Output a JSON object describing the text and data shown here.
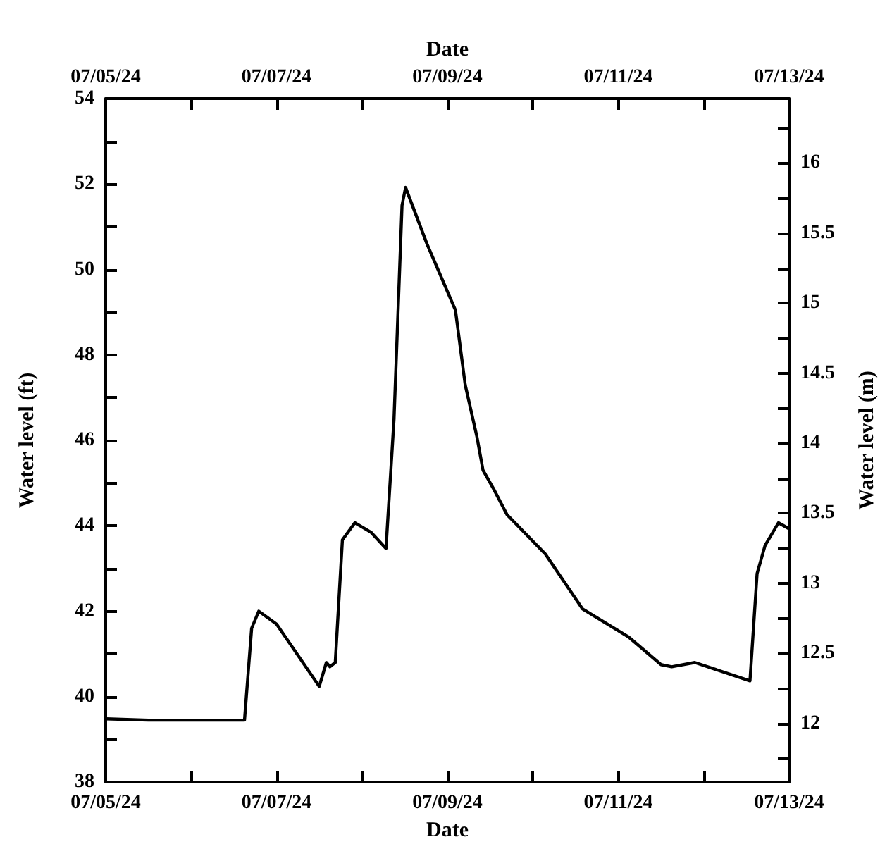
{
  "chart_data": {
    "type": "line",
    "xlabel": "Date",
    "x2label": "Date",
    "ylabel": "Water level (ft)",
    "y2label": "Water level (m)",
    "x": [
      "--07-05T00:00",
      "--07-05T12:00",
      "--07-06T00:00",
      "--07-06T15:00",
      "--07-06T17:00",
      "--07-06T19:00",
      "--07-07T00:00",
      "--07-07T12:00",
      "--07-07T14:00",
      "--07-07T15:00",
      "--07-07T16:30",
      "--07-07T18:30",
      "--07-07T22:00",
      "--07-08T02:30",
      "--07-08T06:45",
      "--07-08T09:00",
      "--07-08T11:15",
      "--07-08T12:15",
      "--07-08T18:15",
      "--07-09T02:15",
      "--07-09T05:00",
      "--07-09T08:15",
      "--07-09T10:00",
      "--07-09T13:00",
      "--07-09T16:45",
      "--07-10T03:30",
      "--07-10T14:00",
      "--07-11T03:00",
      "--07-11T12:00",
      "--07-11T15:00",
      "--07-11T21:30",
      "--07-12T13:00",
      "--07-12T15:00",
      "--07-12T17:15",
      "--07-12T21:00",
      "--07-13T00:00"
    ],
    "series": [
      {
        "color": "#000000",
        "values": [
          39.48,
          39.45,
          39.45,
          39.45,
          41.6,
          42.0,
          41.7,
          40.24,
          40.8,
          40.7,
          40.8,
          43.67,
          44.07,
          43.85,
          43.47,
          46.5,
          51.5,
          51.92,
          50.6,
          49.05,
          47.3,
          46.1,
          45.3,
          44.86,
          44.26,
          43.34,
          42.05,
          41.39,
          40.75,
          40.7,
          40.8,
          40.37,
          42.88,
          43.54,
          44.07,
          43.93
        ]
      }
    ],
    "xlim": [
      "--07-05",
      "--07-13"
    ],
    "xticks": [
      {
        "value": "--07-05",
        "label": "07/05/24"
      },
      {
        "value": "--07-06",
        "label": null
      },
      {
        "value": "--07-07",
        "label": "07/07/24"
      },
      {
        "value": "--07-08",
        "label": null
      },
      {
        "value": "--07-09",
        "label": "07/09/24"
      },
      {
        "value": "--07-10",
        "label": null
      },
      {
        "value": "--07-11",
        "label": "07/11/24"
      },
      {
        "value": "--07-12",
        "label": null
      },
      {
        "value": "--07-13",
        "label": "07/13/24"
      }
    ],
    "x2lim": [
      "--07-05",
      "--07-13"
    ],
    "x2ticks": [
      {
        "value": "--07-05",
        "label": "07/05/24"
      },
      {
        "value": "--07-06",
        "label": null
      },
      {
        "value": "--07-07",
        "label": "07/07/24"
      },
      {
        "value": "--07-08",
        "label": null
      },
      {
        "value": "--07-09",
        "label": "07/09/24"
      },
      {
        "value": "--07-10",
        "label": null
      },
      {
        "value": "--07-11",
        "label": "07/11/24"
      },
      {
        "value": "--07-12",
        "label": null
      },
      {
        "value": "--07-13",
        "label": "07/13/24"
      }
    ],
    "ylim": [
      38,
      54
    ],
    "yticks": [
      38,
      {
        "value": 39,
        "label": null
      },
      40,
      {
        "value": 41,
        "label": null
      },
      42,
      {
        "value": 43,
        "label": null
      },
      44,
      {
        "value": 45,
        "label": null
      },
      46,
      {
        "value": 47,
        "label": null
      },
      48,
      {
        "value": 49,
        "label": null
      },
      50,
      {
        "value": 51,
        "label": null
      },
      52,
      {
        "value": 53,
        "label": null
      },
      54
    ],
    "y2lim": [
      11.58,
      16.46
    ],
    "y2ticks": [
      {
        "value": 11.75,
        "label": null
      },
      12,
      {
        "value": 12.25,
        "label": null
      },
      12.5,
      {
        "value": 12.75,
        "label": null
      },
      13,
      {
        "value": 13.25,
        "label": null
      },
      13.5,
      {
        "value": 13.75,
        "label": null
      },
      14,
      {
        "value": 14.25,
        "label": null
      },
      14.5,
      {
        "value": 14.75,
        "label": null
      },
      15,
      {
        "value": 15.25,
        "label": null
      },
      15.5,
      {
        "value": 15.75,
        "label": null
      },
      16,
      {
        "value": 16.25,
        "label": null
      }
    ],
    "grid": false,
    "marker": "none",
    "line_style": "solid"
  }
}
